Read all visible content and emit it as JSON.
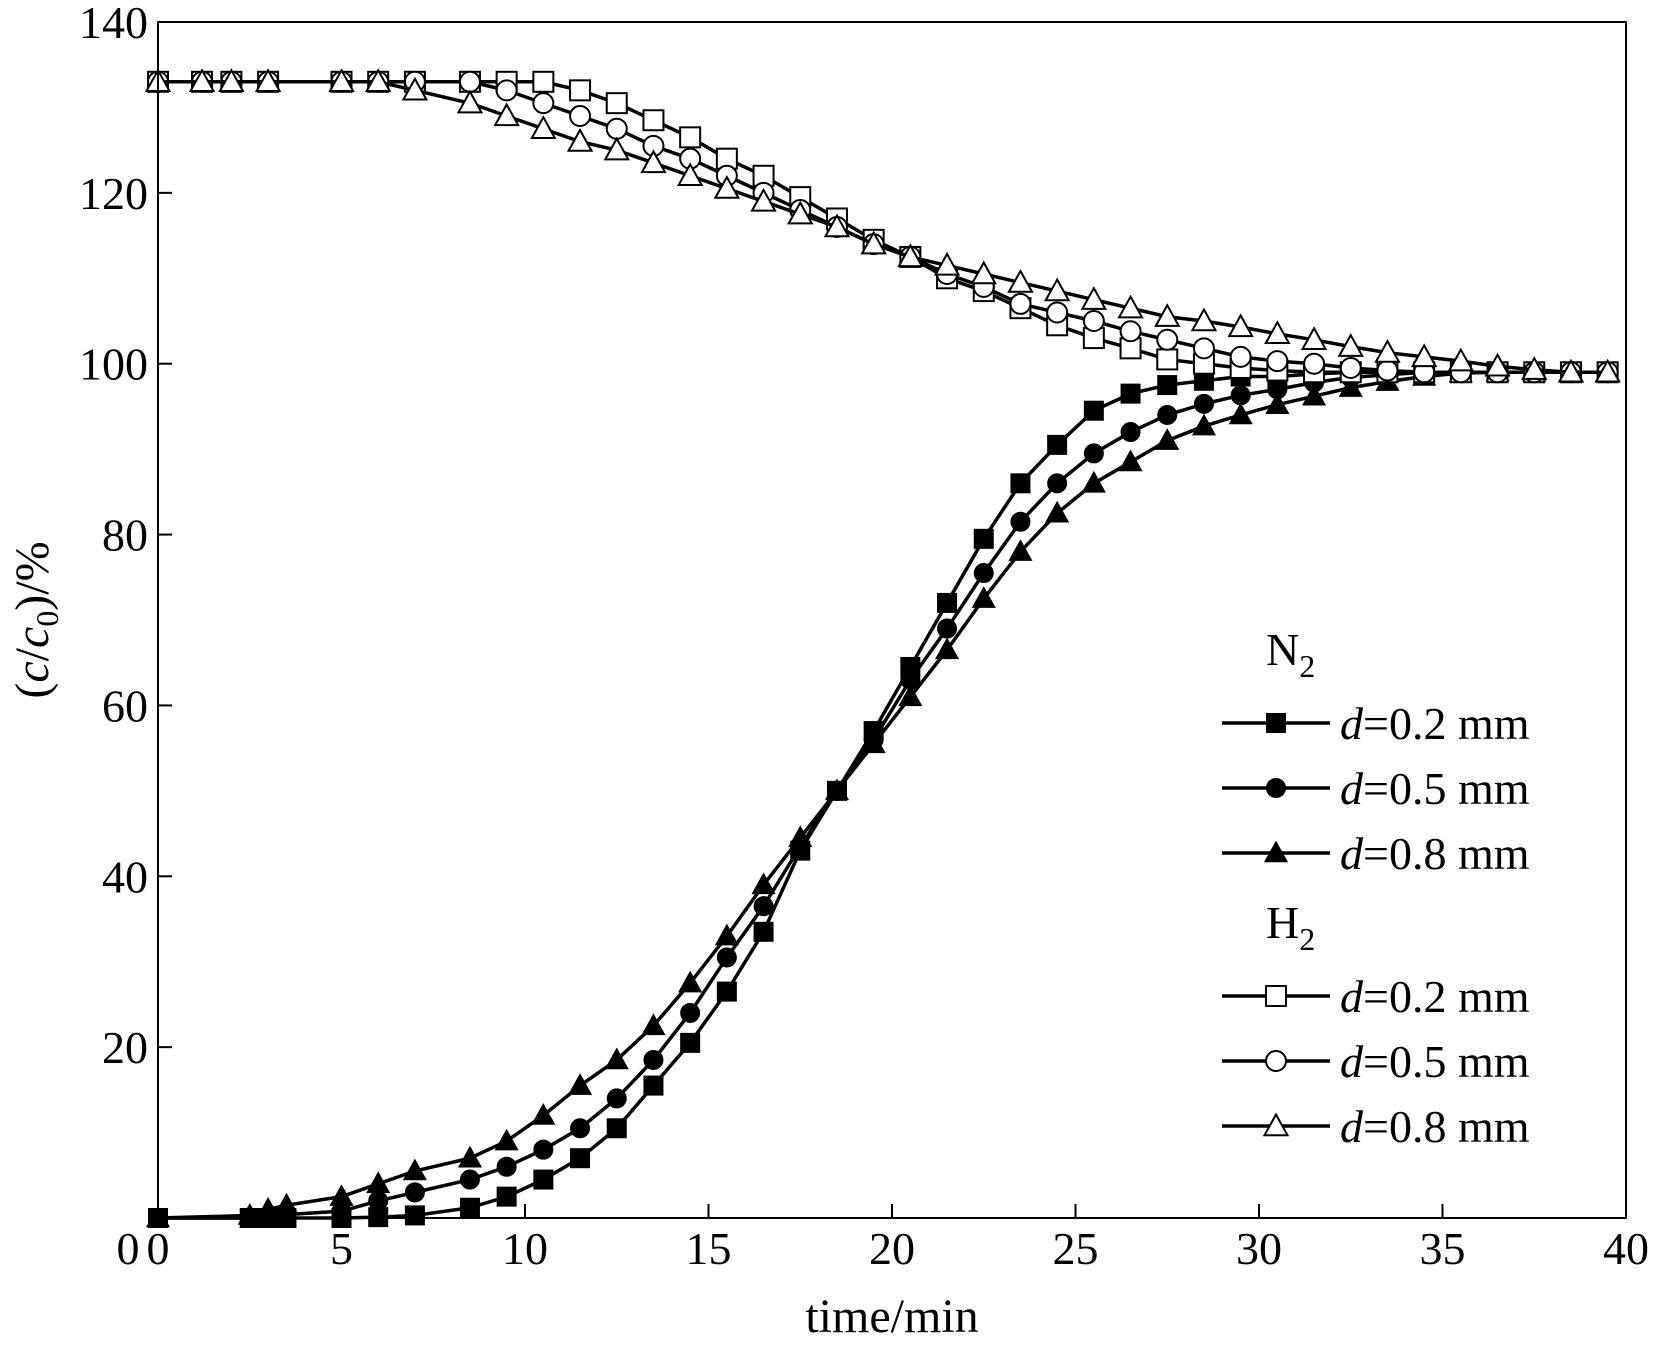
{
  "chart_data": {
    "type": "line",
    "title": "",
    "xlabel": "time/min",
    "ylabel_parts": {
      "open": "(",
      "c": "c",
      "slash": "/",
      "c0": "c",
      "sub0": "0",
      "close": ")/%"
    },
    "xlim": [
      0,
      40
    ],
    "ylim": [
      0,
      140
    ],
    "xticks": [
      0,
      5,
      10,
      15,
      20,
      25,
      30,
      35,
      40
    ],
    "yticks": [
      20,
      40,
      60,
      80,
      100,
      120,
      140
    ],
    "grid": false,
    "legend_position": "right-center",
    "legend_groups": [
      {
        "label": "N",
        "sub": "2"
      },
      {
        "label": "H",
        "sub": "2"
      }
    ],
    "series": [
      {
        "name": "d=0.2 mm",
        "legend_prefix": "d",
        "legend_value": "=0.2 mm",
        "group": "N2",
        "marker": "square",
        "filled": true,
        "x": [
          0,
          2.5,
          3,
          3.5,
          5,
          6,
          7,
          8.5,
          9.5,
          10.5,
          11.5,
          12.5,
          13.5,
          14.5,
          15.5,
          16.5,
          17.5,
          18.5,
          19.5,
          20.5,
          21.5,
          22.5,
          23.5,
          24.5,
          25.5,
          26.5,
          27.5,
          28.5,
          29.5,
          30.5,
          31.5,
          32.5,
          33.5,
          34.5,
          35.5,
          36.5,
          37.5,
          38.5,
          39.5
        ],
        "y": [
          0,
          0,
          0,
          0,
          0,
          0.1,
          0.3,
          1.2,
          2.5,
          4.5,
          7,
          10.5,
          15.5,
          20.5,
          26.5,
          33.5,
          43,
          50,
          57,
          64.5,
          72,
          79.5,
          86,
          90.5,
          94.5,
          96.5,
          97.5,
          98,
          98.5,
          98.5,
          98.8,
          99,
          99,
          99,
          99,
          99,
          99,
          99,
          99
        ]
      },
      {
        "name": "d=0.5 mm",
        "legend_prefix": "d",
        "legend_value": "=0.5 mm",
        "group": "N2",
        "marker": "circle",
        "filled": true,
        "x": [
          0,
          2.5,
          3,
          3.5,
          5,
          6,
          7,
          8.5,
          9.5,
          10.5,
          11.5,
          12.5,
          13.5,
          14.5,
          15.5,
          16.5,
          17.5,
          18.5,
          19.5,
          20.5,
          21.5,
          22.5,
          23.5,
          24.5,
          25.5,
          26.5,
          27.5,
          28.5,
          29.5,
          30.5,
          31.5,
          32.5,
          33.5,
          34.5,
          35.5,
          36.5,
          37.5,
          38.5,
          39.5
        ],
        "y": [
          0,
          0,
          0.2,
          0.4,
          0.8,
          2,
          3,
          4.5,
          6,
          8,
          10.5,
          14,
          18.5,
          24,
          30.5,
          36.5,
          43.5,
          50,
          56,
          63,
          69,
          75.5,
          81.5,
          86,
          89.5,
          92,
          94,
          95.3,
          96.3,
          97,
          97.8,
          98.4,
          98.7,
          99,
          99,
          99,
          99,
          99,
          99
        ]
      },
      {
        "name": "d=0.8 mm",
        "legend_prefix": "d",
        "legend_value": "=0.8 mm",
        "group": "N2",
        "marker": "triangle",
        "filled": true,
        "x": [
          0,
          2.5,
          3,
          3.5,
          5,
          6,
          7,
          8.5,
          9.5,
          10.5,
          11.5,
          12.5,
          13.5,
          14.5,
          15.5,
          16.5,
          17.5,
          18.5,
          19.5,
          20.5,
          21.5,
          22.5,
          23.5,
          24.5,
          25.5,
          26.5,
          27.5,
          28.5,
          29.5,
          30.5,
          31.5,
          32.5,
          33.5,
          34.5,
          35.5,
          36.5,
          37.5,
          38.5,
          39.5
        ],
        "y": [
          0,
          0.3,
          1,
          1.5,
          2.5,
          4,
          5.5,
          7,
          9,
          12,
          15.5,
          18.5,
          22.5,
          27.5,
          33,
          39,
          44.5,
          50,
          55.5,
          61,
          66.5,
          72.5,
          78,
          82.5,
          86,
          88.5,
          91,
          92.7,
          94,
          95.2,
          96.2,
          97.2,
          97.9,
          98.5,
          98.9,
          99,
          99,
          99,
          99
        ]
      },
      {
        "name": "d=0.2 mm",
        "legend_prefix": "d",
        "legend_value": "=0.2 mm",
        "group": "H2",
        "marker": "square",
        "filled": false,
        "x": [
          0,
          1.2,
          2,
          3,
          5,
          6,
          7,
          8.5,
          9.5,
          10.5,
          11.5,
          12.5,
          13.5,
          14.5,
          15.5,
          16.5,
          17.5,
          18.5,
          19.5,
          20.5,
          21.5,
          22.5,
          23.5,
          24.5,
          25.5,
          26.5,
          27.5,
          28.5,
          29.5,
          30.5,
          31.5,
          32.5,
          33.5,
          34.5,
          35.5,
          36.5,
          37.5,
          38.5,
          39.5
        ],
        "y": [
          133,
          133,
          133,
          133,
          133,
          133,
          133,
          133,
          133,
          133,
          132,
          130.5,
          128.5,
          126.5,
          124,
          122,
          119.5,
          117,
          114.5,
          112.5,
          110,
          108.5,
          106.5,
          104.5,
          103,
          101.8,
          100.5,
          100,
          99.5,
          99.2,
          99,
          99,
          99,
          99,
          99,
          99,
          99,
          99,
          99
        ]
      },
      {
        "name": "d=0.5 mm",
        "legend_prefix": "d",
        "legend_value": "=0.5 mm",
        "group": "H2",
        "marker": "circle",
        "filled": false,
        "x": [
          0,
          1.2,
          2,
          3,
          5,
          6,
          7,
          8.5,
          9.5,
          10.5,
          11.5,
          12.5,
          13.5,
          14.5,
          15.5,
          16.5,
          17.5,
          18.5,
          19.5,
          20.5,
          21.5,
          22.5,
          23.5,
          24.5,
          25.5,
          26.5,
          27.5,
          28.5,
          29.5,
          30.5,
          31.5,
          32.5,
          33.5,
          34.5,
          35.5,
          36.5,
          37.5,
          38.5,
          39.5
        ],
        "y": [
          133,
          133,
          133,
          133,
          133,
          133,
          133,
          133,
          132,
          130.5,
          129,
          127.5,
          125.5,
          124,
          122,
          120,
          118,
          116,
          114,
          112.5,
          110.5,
          109,
          107,
          106,
          105,
          103.8,
          102.8,
          101.8,
          100.8,
          100.3,
          100,
          99.5,
          99.2,
          99,
          99,
          99,
          99,
          99,
          99
        ]
      },
      {
        "name": "d=0.8 mm",
        "legend_prefix": "d",
        "legend_value": "=0.8 mm",
        "group": "H2",
        "marker": "triangle",
        "filled": false,
        "x": [
          0,
          1.2,
          2,
          3,
          5,
          6,
          7,
          8.5,
          9.5,
          10.5,
          11.5,
          12.5,
          13.5,
          14.5,
          15.5,
          16.5,
          17.5,
          18.5,
          19.5,
          20.5,
          21.5,
          22.5,
          23.5,
          24.5,
          25.5,
          26.5,
          27.5,
          28.5,
          29.5,
          30.5,
          31.5,
          32.5,
          33.5,
          34.5,
          35.5,
          36.5,
          37.5,
          38.5,
          39.5
        ],
        "y": [
          133,
          133,
          133,
          133,
          133,
          133,
          132,
          130.5,
          129,
          127.5,
          126,
          125,
          123.5,
          122,
          120.5,
          119,
          117.5,
          116,
          114,
          112.5,
          111.5,
          110.5,
          109.5,
          108.5,
          107.5,
          106.5,
          105.5,
          105,
          104.3,
          103.5,
          102.8,
          102,
          101.3,
          100.8,
          100.3,
          99.7,
          99.3,
          99,
          99
        ]
      }
    ]
  }
}
